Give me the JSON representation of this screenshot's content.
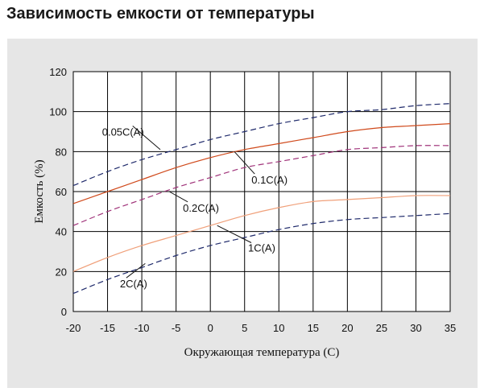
{
  "page": {
    "title": "Зависимость емкости от температуры"
  },
  "colors": {
    "panel_bg": "#e6e6e6",
    "plot_bg": "#ffffff",
    "grid": "#000000",
    "navy_dashed": "#1f2a6b",
    "purple_dashed": "#a0337a",
    "orange_dark": "#d04a1c",
    "orange_light": "#f0a07a"
  },
  "chart_data": {
    "type": "line",
    "title": "",
    "xlabel": "Окружающая температура (С)",
    "ylabel": "Емкость (%)",
    "xlim": [
      -20,
      35
    ],
    "ylim": [
      0,
      120
    ],
    "x_ticks": [
      "-20",
      "-15",
      "-10",
      "-5",
      "0",
      "5",
      "10",
      "15",
      "20",
      "25",
      "30",
      "35"
    ],
    "y_ticks": [
      "0",
      "20",
      "40",
      "60",
      "80",
      "100",
      "120"
    ],
    "grid": true,
    "series": [
      {
        "name": "0.05C(A)",
        "style": "dashed",
        "color_key": "navy_dashed",
        "x": [
          -20,
          -15,
          -10,
          -5,
          0,
          5,
          10,
          15,
          20,
          25,
          30,
          35
        ],
        "y": [
          63,
          70,
          76,
          81,
          86,
          90,
          94,
          97,
          100,
          101,
          103,
          104
        ]
      },
      {
        "name": "0.1C(A)",
        "style": "solid",
        "color_key": "orange_dark",
        "x": [
          -20,
          -15,
          -10,
          -5,
          0,
          5,
          10,
          15,
          20,
          25,
          30,
          35
        ],
        "y": [
          54,
          60,
          66,
          72,
          77,
          81,
          84,
          87,
          90,
          92,
          93,
          94
        ]
      },
      {
        "name": "0.2C(A)",
        "style": "dashed",
        "color_key": "purple_dashed",
        "x": [
          -20,
          -15,
          -10,
          -5,
          0,
          5,
          10,
          15,
          20,
          25,
          30,
          35
        ],
        "y": [
          43,
          50,
          56,
          62,
          67,
          72,
          75,
          78,
          81,
          82,
          83,
          83
        ]
      },
      {
        "name": "1C(A)",
        "style": "solid",
        "color_key": "orange_light",
        "x": [
          -20,
          -15,
          -10,
          -5,
          0,
          5,
          10,
          15,
          20,
          25,
          30,
          35
        ],
        "y": [
          20,
          27,
          33,
          38,
          43,
          48,
          52,
          55,
          56,
          57,
          58,
          58
        ]
      },
      {
        "name": "2C(A)",
        "style": "dashed",
        "color_key": "navy_dashed",
        "x": [
          -20,
          -15,
          -10,
          -5,
          0,
          5,
          10,
          15,
          20,
          25,
          30,
          35
        ],
        "y": [
          9,
          16,
          22,
          28,
          33,
          37,
          41,
          44,
          46,
          47,
          48,
          49
        ]
      }
    ],
    "annotations": [
      {
        "text": "0.05C(A)",
        "series": "0.05C(A)",
        "at_x": -7.3,
        "at_y": 81
      },
      {
        "text": "0.1C(A)",
        "series": "0.1C(A)",
        "at_x": 3.5,
        "at_y": 80
      },
      {
        "text": "0.2C(A)",
        "series": "0.2C(A)",
        "at_x": -6,
        "at_y": 60
      },
      {
        "text": "1C(A)",
        "series": "1C(A)",
        "at_x": 1,
        "at_y": 43
      },
      {
        "text": "2C(A)",
        "series": "2C(A)",
        "at_x": -9.5,
        "at_y": 24
      }
    ]
  }
}
